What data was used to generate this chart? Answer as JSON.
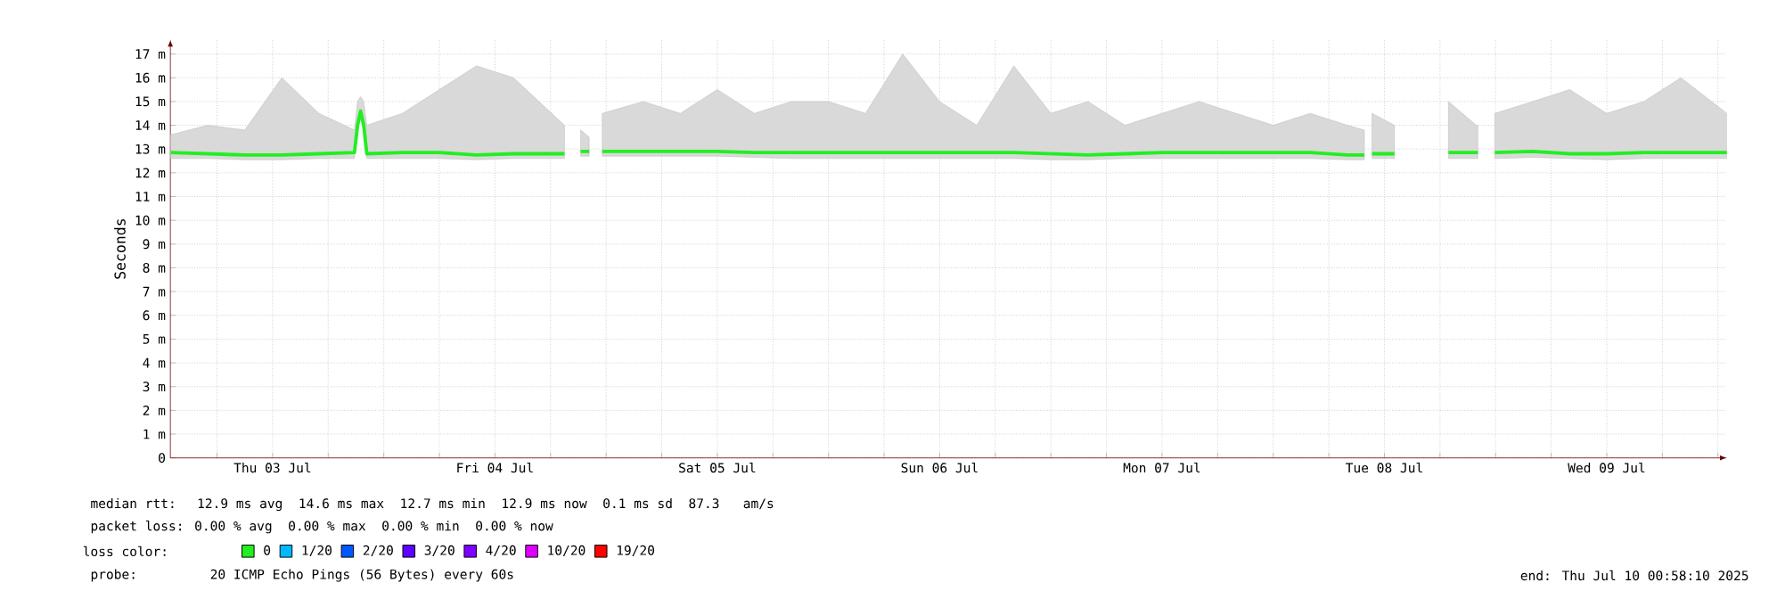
{
  "chart_data": {
    "type": "line",
    "ylabel": "Seconds",
    "legend_title": "loss color:",
    "legend": "bottom",
    "grid": true,
    "marker": "none",
    "line_style": "solid",
    "xlim": [
      "2025-07-03T00:58",
      "2025-07-10T00:58"
    ],
    "xticks": [
      {
        "value": "2025-07-03T06:00",
        "label": null
      },
      {
        "value": "2025-07-03T12:00",
        "label": "Thu 03 Jul"
      },
      {
        "value": "2025-07-03T18:00",
        "label": null
      },
      {
        "value": "2025-07-04T00:00",
        "label": null
      },
      {
        "value": "2025-07-04T06:00",
        "label": null
      },
      {
        "value": "2025-07-04T12:00",
        "label": "Fri 04 Jul"
      },
      {
        "value": "2025-07-04T18:00",
        "label": null
      },
      {
        "value": "2025-07-05T00:00",
        "label": null
      },
      {
        "value": "2025-07-05T06:00",
        "label": null
      },
      {
        "value": "2025-07-05T12:00",
        "label": "Sat 05 Jul"
      },
      {
        "value": "2025-07-05T18:00",
        "label": null
      },
      {
        "value": "2025-07-06T00:00",
        "label": null
      },
      {
        "value": "2025-07-06T06:00",
        "label": null
      },
      {
        "value": "2025-07-06T12:00",
        "label": "Sun 06 Jul"
      },
      {
        "value": "2025-07-06T18:00",
        "label": null
      },
      {
        "value": "2025-07-07T00:00",
        "label": null
      },
      {
        "value": "2025-07-07T06:00",
        "label": null
      },
      {
        "value": "2025-07-07T12:00",
        "label": "Mon 07 Jul"
      },
      {
        "value": "2025-07-07T18:00",
        "label": null
      },
      {
        "value": "2025-07-08T00:00",
        "label": null
      },
      {
        "value": "2025-07-08T06:00",
        "label": null
      },
      {
        "value": "2025-07-08T12:00",
        "label": "Tue 08 Jul"
      },
      {
        "value": "2025-07-08T18:00",
        "label": null
      },
      {
        "value": "2025-07-09T00:00",
        "label": null
      },
      {
        "value": "2025-07-09T06:00",
        "label": null
      },
      {
        "value": "2025-07-09T12:00",
        "label": "Wed 09 Jul"
      },
      {
        "value": "2025-07-09T18:00",
        "label": null
      },
      {
        "value": "2025-07-10T00:00",
        "label": null
      }
    ],
    "ylim": [
      0,
      17.6
    ],
    "yticks": [
      0,
      {
        "value": 1,
        "label": "1 m"
      },
      {
        "value": 2,
        "label": "2 m"
      },
      {
        "value": 3,
        "label": "3 m"
      },
      {
        "value": 4,
        "label": "4 m"
      },
      {
        "value": 5,
        "label": "5 m"
      },
      {
        "value": 6,
        "label": "6 m"
      },
      {
        "value": 7,
        "label": "7 m"
      },
      {
        "value": 8,
        "label": "8 m"
      },
      {
        "value": 9,
        "label": "9 m"
      },
      {
        "value": 10,
        "label": "10 m"
      },
      {
        "value": 11,
        "label": "11 m"
      },
      {
        "value": 12,
        "label": "12 m"
      },
      {
        "value": 13,
        "label": "13 m"
      },
      {
        "value": 14,
        "label": "14 m"
      },
      {
        "value": 15,
        "label": "15 m"
      },
      {
        "value": 16,
        "label": "16 m"
      },
      {
        "value": 17,
        "label": "17 m"
      }
    ],
    "x": [
      "2025-07-03T01:00",
      "2025-07-03T05:00",
      "2025-07-03T09:00",
      "2025-07-03T13:00",
      "2025-07-03T17:00",
      "2025-07-03T20:50",
      "2025-07-03T21:10",
      "2025-07-03T21:30",
      "2025-07-03T21:50",
      "2025-07-03T22:10",
      "2025-07-04T02:00",
      "2025-07-04T06:00",
      "2025-07-04T10:00",
      "2025-07-04T14:00",
      "2025-07-04T19:30",
      "2025-07-04T20:30",
      "2025-07-04T21:15",
      "2025-07-04T22:10",
      "2025-07-04T22:45",
      "2025-07-04T23:35",
      "2025-07-05T04:00",
      "2025-07-05T08:00",
      "2025-07-05T12:00",
      "2025-07-05T16:00",
      "2025-07-05T20:00",
      "2025-07-06T00:00",
      "2025-07-06T04:00",
      "2025-07-06T08:00",
      "2025-07-06T12:00",
      "2025-07-06T16:00",
      "2025-07-06T20:00",
      "2025-07-07T00:00",
      "2025-07-07T04:00",
      "2025-07-07T08:00",
      "2025-07-07T12:00",
      "2025-07-07T16:00",
      "2025-07-07T20:00",
      "2025-07-08T00:00",
      "2025-07-08T04:00",
      "2025-07-08T08:00",
      "2025-07-08T09:50",
      "2025-07-08T10:10",
      "2025-07-08T10:40",
      "2025-07-08T13:05",
      "2025-07-08T16:00",
      "2025-07-08T18:55",
      "2025-07-08T21:55",
      "2025-07-08T22:05",
      "2025-07-08T22:15",
      "2025-07-08T23:10",
      "2025-07-08T23:55",
      "2025-07-09T04:00",
      "2025-07-09T08:00",
      "2025-07-09T12:00",
      "2025-07-09T16:00",
      "2025-07-09T20:00",
      "2025-07-10T00:58"
    ],
    "series": [
      {
        "name": "0",
        "color": "#22ee22",
        "values": [
          12.85,
          12.8,
          12.75,
          12.75,
          12.8,
          12.85,
          14.0,
          14.6,
          14.0,
          12.8,
          12.85,
          12.85,
          12.75,
          12.8,
          12.8,
          null,
          12.9,
          12.9,
          null,
          12.9,
          12.9,
          12.9,
          12.9,
          12.85,
          12.85,
          12.85,
          12.85,
          12.85,
          12.85,
          12.85,
          12.85,
          12.8,
          12.75,
          12.8,
          12.85,
          12.85,
          12.85,
          12.85,
          12.85,
          12.75,
          12.75,
          null,
          12.8,
          12.8,
          null,
          12.85,
          12.85,
          12.85,
          null,
          null,
          12.85,
          12.9,
          12.8,
          12.8,
          12.85,
          12.85,
          12.85
        ],
        "lower": [
          12.6,
          12.6,
          12.55,
          12.55,
          12.6,
          12.6,
          13.8,
          14.3,
          13.8,
          12.6,
          12.6,
          12.6,
          12.55,
          12.6,
          12.6,
          null,
          12.7,
          12.7,
          null,
          12.7,
          12.7,
          12.7,
          12.7,
          12.65,
          12.6,
          12.6,
          12.6,
          12.6,
          12.6,
          12.6,
          12.6,
          12.55,
          12.55,
          12.6,
          12.6,
          12.6,
          12.6,
          12.6,
          12.6,
          12.55,
          12.55,
          null,
          12.6,
          12.6,
          null,
          12.6,
          12.6,
          12.6,
          null,
          null,
          12.6,
          12.65,
          12.6,
          12.55,
          12.6,
          12.6,
          12.6
        ],
        "upper": [
          13.6,
          14.0,
          13.8,
          16.0,
          14.5,
          13.8,
          15.0,
          15.2,
          15.0,
          14.0,
          14.5,
          15.5,
          16.5,
          16.0,
          14.0,
          null,
          13.8,
          13.5,
          null,
          14.5,
          15.0,
          14.5,
          15.5,
          14.5,
          15.0,
          15.0,
          14.5,
          17.0,
          15.0,
          14.0,
          16.5,
          14.5,
          15.0,
          14.0,
          14.5,
          15.0,
          14.5,
          14.0,
          14.5,
          14.0,
          13.8,
          null,
          14.5,
          14.0,
          null,
          15.0,
          14.0,
          14.0,
          null,
          null,
          14.5,
          15.0,
          15.5,
          14.5,
          15.0,
          16.0,
          14.5
        ]
      },
      {
        "name": "1/20",
        "color": "#00b8ff",
        "values": [
          null,
          null,
          null,
          null,
          null,
          null,
          null,
          null,
          null,
          null,
          null,
          null,
          null,
          null,
          null,
          null,
          null,
          null,
          null,
          null,
          null,
          null,
          null,
          null,
          null,
          null,
          null,
          null,
          null,
          null,
          null,
          null,
          null,
          null,
          null,
          null,
          null,
          null,
          null,
          null,
          null,
          null,
          null,
          null,
          null,
          null,
          null,
          null,
          null,
          null,
          null,
          null,
          null,
          null,
          null,
          null,
          null
        ]
      },
      {
        "name": "2/20",
        "color": "#0059ff",
        "values": [
          null,
          null,
          null,
          null,
          null,
          null,
          null,
          null,
          null,
          null,
          null,
          null,
          null,
          null,
          null,
          null,
          null,
          null,
          null,
          null,
          null,
          null,
          null,
          null,
          null,
          null,
          null,
          null,
          null,
          null,
          null,
          null,
          null,
          null,
          null,
          null,
          null,
          null,
          null,
          null,
          null,
          null,
          null,
          null,
          null,
          null,
          null,
          null,
          null,
          null,
          null,
          null,
          null,
          null,
          null,
          null,
          null
        ]
      },
      {
        "name": "3/20",
        "color": "#5e00ff",
        "values": [
          null,
          null,
          null,
          null,
          null,
          null,
          null,
          null,
          null,
          null,
          null,
          null,
          null,
          null,
          null,
          null,
          null,
          null,
          null,
          null,
          null,
          null,
          null,
          null,
          null,
          null,
          null,
          null,
          null,
          null,
          null,
          null,
          null,
          null,
          null,
          null,
          null,
          null,
          null,
          null,
          null,
          null,
          null,
          null,
          null,
          null,
          null,
          null,
          null,
          null,
          null,
          null,
          null,
          null,
          null,
          null,
          null
        ]
      },
      {
        "name": "4/20",
        "color": "#7e00ff",
        "values": [
          null,
          null,
          null,
          null,
          null,
          null,
          null,
          null,
          null,
          null,
          null,
          null,
          null,
          null,
          null,
          null,
          null,
          null,
          null,
          null,
          null,
          null,
          null,
          null,
          null,
          null,
          null,
          null,
          null,
          null,
          null,
          null,
          null,
          null,
          null,
          null,
          null,
          null,
          null,
          null,
          null,
          null,
          null,
          null,
          null,
          null,
          null,
          null,
          null,
          null,
          null,
          null,
          null,
          null,
          null,
          null,
          null
        ]
      },
      {
        "name": "10/20",
        "color": "#dd00ff",
        "values": [
          null,
          null,
          null,
          null,
          null,
          null,
          null,
          null,
          null,
          null,
          null,
          null,
          null,
          null,
          null,
          null,
          null,
          null,
          null,
          null,
          null,
          null,
          null,
          null,
          null,
          null,
          null,
          null,
          null,
          null,
          null,
          null,
          null,
          null,
          null,
          null,
          null,
          null,
          null,
          null,
          null,
          null,
          null,
          null,
          null,
          null,
          null,
          null,
          null,
          null,
          null,
          null,
          null,
          null,
          null,
          null,
          null
        ]
      },
      {
        "name": "19/20",
        "color": "#ff0000",
        "values": [
          null,
          null,
          null,
          null,
          null,
          null,
          null,
          null,
          null,
          null,
          null,
          null,
          null,
          null,
          null,
          null,
          null,
          null,
          null,
          null,
          null,
          null,
          null,
          null,
          null,
          null,
          null,
          null,
          null,
          null,
          null,
          null,
          null,
          null,
          null,
          null,
          null,
          null,
          null,
          null,
          null,
          null,
          null,
          null,
          null,
          null,
          null,
          null,
          null,
          null,
          null,
          null,
          null,
          null,
          null,
          null,
          null
        ]
      }
    ],
    "annotations": [
      "median rtt:  12.9 ms avg  14.6 ms max  12.7 ms min  12.9 ms now  0.1 ms sd  87.3   am/s",
      "packet loss: 0.00 % avg  0.00 % max  0.00 % min  0.00 % now",
      "probe:       20 ICMP Echo Pings (56 Bytes) every 60s",
      "end: Thu Jul 10 00:58:10 2025"
    ]
  }
}
